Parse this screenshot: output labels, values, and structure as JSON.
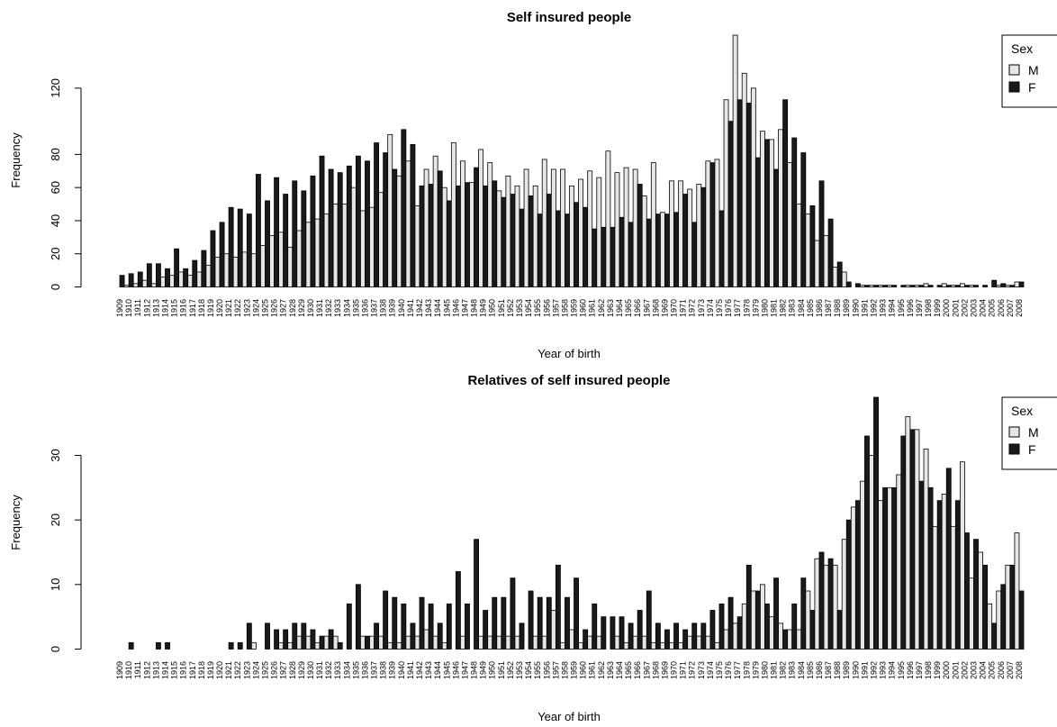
{
  "colors": {
    "M": "#e6e6e6",
    "F": "#1a1a1a",
    "stroke": "#000000"
  },
  "chart_data": [
    {
      "type": "bar",
      "title": "Self insured people",
      "xlabel": "Year of birth",
      "ylabel": "Frequency",
      "ylim": [
        0,
        152
      ],
      "yticks": [
        "0",
        "20",
        "40",
        "60",
        "80",
        "120"
      ],
      "legend": {
        "title": "Sex",
        "placement": "top-right",
        "entries": [
          "M",
          "F"
        ]
      },
      "categories": [
        "1909",
        "1910",
        "1911",
        "1912",
        "1913",
        "1914",
        "1915",
        "1916",
        "1917",
        "1918",
        "1919",
        "1920",
        "1921",
        "1922",
        "1923",
        "1924",
        "1925",
        "1926",
        "1927",
        "1928",
        "1929",
        "1930",
        "1931",
        "1932",
        "1933",
        "1934",
        "1935",
        "1936",
        "1937",
        "1938",
        "1939",
        "1940",
        "1941",
        "1942",
        "1943",
        "1944",
        "1945",
        "1946",
        "1947",
        "1948",
        "1949",
        "1950",
        "1951",
        "1952",
        "1953",
        "1954",
        "1955",
        "1956",
        "1957",
        "1958",
        "1959",
        "1960",
        "1961",
        "1962",
        "1963",
        "1964",
        "1965",
        "1966",
        "1967",
        "1968",
        "1969",
        "1970",
        "1971",
        "1972",
        "1973",
        "1974",
        "1975",
        "1976",
        "1977",
        "1978",
        "1979",
        "1980",
        "1981",
        "1982",
        "1983",
        "1984",
        "1985",
        "1986",
        "1987",
        "1988",
        "1989",
        "1990",
        "1991",
        "1992",
        "1993",
        "1994",
        "1995",
        "1996",
        "1997",
        "1998",
        "1999",
        "2000",
        "2001",
        "2002",
        "2003",
        "2004",
        "2005",
        "2006",
        "2007",
        "2008"
      ],
      "series": [
        {
          "name": "M",
          "values": [
            0,
            1,
            2,
            4,
            2,
            6,
            7,
            9,
            7,
            9,
            13,
            18,
            20,
            18,
            21,
            20,
            25,
            31,
            33,
            24,
            34,
            39,
            41,
            44,
            50,
            50,
            60,
            46,
            48,
            57,
            92,
            67,
            76,
            49,
            71,
            79,
            60,
            87,
            76,
            63,
            83,
            75,
            58,
            67,
            61,
            71,
            61,
            77,
            71,
            71,
            61,
            65,
            70,
            66,
            82,
            69,
            72,
            71,
            55,
            75,
            45,
            64,
            64,
            59,
            62,
            76,
            77,
            113,
            152,
            129,
            120,
            94,
            89,
            95,
            75,
            50,
            44,
            28,
            31,
            12,
            9,
            0,
            1,
            1,
            1,
            1,
            0,
            1,
            1,
            2,
            0,
            2,
            1,
            2,
            1,
            0,
            0,
            1,
            1,
            3
          ]
        },
        {
          "name": "F",
          "values": [
            7,
            8,
            9,
            14,
            14,
            11,
            23,
            11,
            16,
            22,
            34,
            39,
            48,
            47,
            44,
            68,
            52,
            66,
            56,
            64,
            58,
            67,
            79,
            71,
            69,
            73,
            79,
            76,
            87,
            81,
            71,
            95,
            86,
            61,
            62,
            70,
            52,
            61,
            63,
            72,
            61,
            64,
            54,
            56,
            47,
            55,
            44,
            56,
            46,
            44,
            51,
            48,
            35,
            36,
            36,
            42,
            39,
            62,
            41,
            44,
            44,
            45,
            56,
            39,
            60,
            75,
            46,
            100,
            113,
            111,
            78,
            89,
            71,
            113,
            90,
            81,
            49,
            64,
            41,
            15,
            3,
            2,
            1,
            1,
            1,
            1,
            1,
            1,
            1,
            1,
            1,
            1,
            1,
            1,
            1,
            1,
            4,
            2,
            1,
            3
          ]
        }
      ]
    },
    {
      "type": "bar",
      "title": "Relatives of self insured people",
      "xlabel": "Year of birth",
      "ylabel": "Frequency",
      "ylim": [
        0,
        39
      ],
      "yticks": [
        "0",
        "10",
        "20",
        "30"
      ],
      "legend": {
        "title": "Sex",
        "placement": "top-right",
        "entries": [
          "M",
          "F"
        ]
      },
      "categories": [
        "1909",
        "1910",
        "1911",
        "1912",
        "1913",
        "1914",
        "1915",
        "1916",
        "1917",
        "1918",
        "1919",
        "1920",
        "1921",
        "1922",
        "1923",
        "1924",
        "1925",
        "1926",
        "1927",
        "1928",
        "1929",
        "1930",
        "1931",
        "1932",
        "1933",
        "1934",
        "1935",
        "1936",
        "1937",
        "1938",
        "1939",
        "1940",
        "1941",
        "1942",
        "1943",
        "1944",
        "1945",
        "1946",
        "1947",
        "1948",
        "1949",
        "1950",
        "1951",
        "1952",
        "1953",
        "1954",
        "1955",
        "1956",
        "1957",
        "1958",
        "1959",
        "1960",
        "1961",
        "1962",
        "1963",
        "1964",
        "1965",
        "1966",
        "1967",
        "1968",
        "1969",
        "1970",
        "1971",
        "1972",
        "1973",
        "1974",
        "1975",
        "1976",
        "1977",
        "1978",
        "1979",
        "1980",
        "1981",
        "1982",
        "1983",
        "1984",
        "1985",
        "1986",
        "1987",
        "1988",
        "1989",
        "1990",
        "1991",
        "1992",
        "1993",
        "1994",
        "1995",
        "1996",
        "1997",
        "1998",
        "1999",
        "2000",
        "2001",
        "2002",
        "2003",
        "2004",
        "2005",
        "2006",
        "2007",
        "2008"
      ],
      "series": [
        {
          "name": "M",
          "values": [
            0,
            0,
            0,
            0,
            0,
            0,
            0,
            0,
            0,
            0,
            0,
            0,
            0,
            0,
            0,
            1,
            0,
            0,
            1,
            1,
            2,
            2,
            1,
            2,
            2,
            0,
            0,
            2,
            2,
            2,
            1,
            1,
            2,
            2,
            3,
            2,
            1,
            0,
            2,
            0,
            2,
            2,
            2,
            2,
            2,
            0,
            2,
            2,
            6,
            1,
            3,
            1,
            2,
            2,
            0,
            2,
            1,
            2,
            2,
            1,
            1,
            1,
            1,
            2,
            2,
            2,
            1,
            3,
            4,
            7,
            9,
            10,
            5,
            4,
            3,
            3,
            9,
            14,
            13,
            13,
            17,
            22,
            26,
            30,
            23,
            25,
            27,
            36,
            34,
            31,
            19,
            24,
            19,
            29,
            11,
            15,
            7,
            9,
            13,
            18
          ]
        },
        {
          "name": "F",
          "values": [
            0,
            1,
            0,
            0,
            1,
            1,
            0,
            0,
            0,
            0,
            0,
            0,
            1,
            1,
            4,
            0,
            4,
            3,
            3,
            4,
            4,
            3,
            2,
            3,
            1,
            7,
            10,
            2,
            4,
            9,
            8,
            7,
            4,
            8,
            7,
            4,
            7,
            12,
            7,
            17,
            6,
            8,
            8,
            11,
            4,
            9,
            8,
            8,
            13,
            8,
            11,
            3,
            7,
            5,
            5,
            5,
            4,
            6,
            9,
            4,
            3,
            4,
            3,
            4,
            4,
            6,
            7,
            8,
            5,
            13,
            9,
            7,
            11,
            3,
            7,
            11,
            6,
            15,
            14,
            6,
            20,
            23,
            33,
            39,
            25,
            25,
            33,
            34,
            26,
            25,
            23,
            28,
            23,
            18,
            17,
            13,
            4,
            10,
            13,
            9
          ]
        }
      ]
    }
  ]
}
